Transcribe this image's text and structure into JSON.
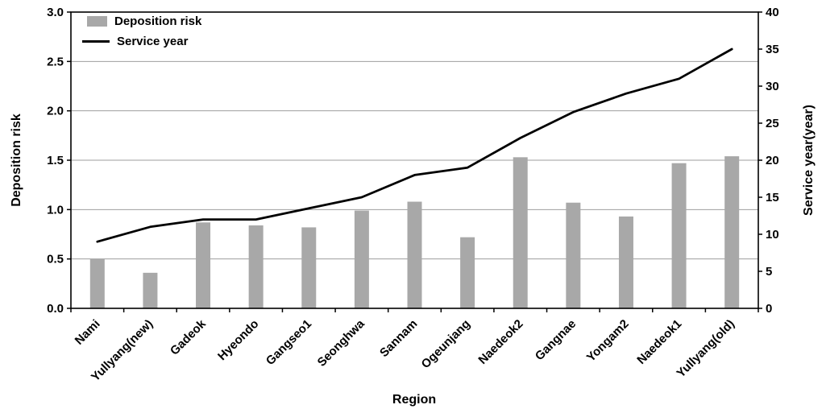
{
  "chart_data": {
    "type": "bar",
    "subtype": "combo-bar-line-dual-axis",
    "title": "",
    "xlabel": "Region",
    "ylabel_left": "Deposition risk",
    "ylabel_right": "Service year(year)",
    "categories": [
      "Nami",
      "Yullyang(new)",
      "Gadeok",
      "Hyeondo",
      "Gangseo1",
      "Seonghwa",
      "Sannam",
      "Ogeunjang",
      "Naedeok2",
      "Gangnae",
      "Yongam2",
      "Naedeok1",
      "Yullyang(old)"
    ],
    "series": [
      {
        "name": "Deposition risk",
        "type": "bar",
        "axis": "left",
        "color": "#a8a8a8",
        "values": [
          0.5,
          0.36,
          0.87,
          0.84,
          0.82,
          0.99,
          1.08,
          0.72,
          1.53,
          1.07,
          0.93,
          1.47,
          1.54
        ]
      },
      {
        "name": "Service year",
        "type": "line",
        "axis": "right",
        "color": "#000000",
        "values": [
          9,
          11,
          12,
          12,
          13.5,
          15,
          18,
          19,
          23,
          26.5,
          29,
          31,
          35
        ]
      }
    ],
    "left_axis": {
      "min": 0,
      "max": 3,
      "tick_labels": [
        "0.0",
        "0.5",
        "1.0",
        "1.5",
        "2.0",
        "2.5",
        "3.0"
      ],
      "tick_values": [
        0,
        0.5,
        1,
        1.5,
        2,
        2.5,
        3
      ]
    },
    "right_axis": {
      "min": 0,
      "max": 40,
      "tick_labels": [
        "0",
        "5",
        "10",
        "15",
        "20",
        "25",
        "30",
        "35",
        "40"
      ],
      "tick_values": [
        0,
        5,
        10,
        15,
        20,
        25,
        30,
        35,
        40
      ]
    },
    "legend": {
      "position": "top-left-inside",
      "entries": [
        "Deposition risk",
        "Service year"
      ]
    },
    "grid": true,
    "grid_color": "#9e9e9e",
    "plot_border_color": "#000000",
    "background_color": "#ffffff"
  }
}
